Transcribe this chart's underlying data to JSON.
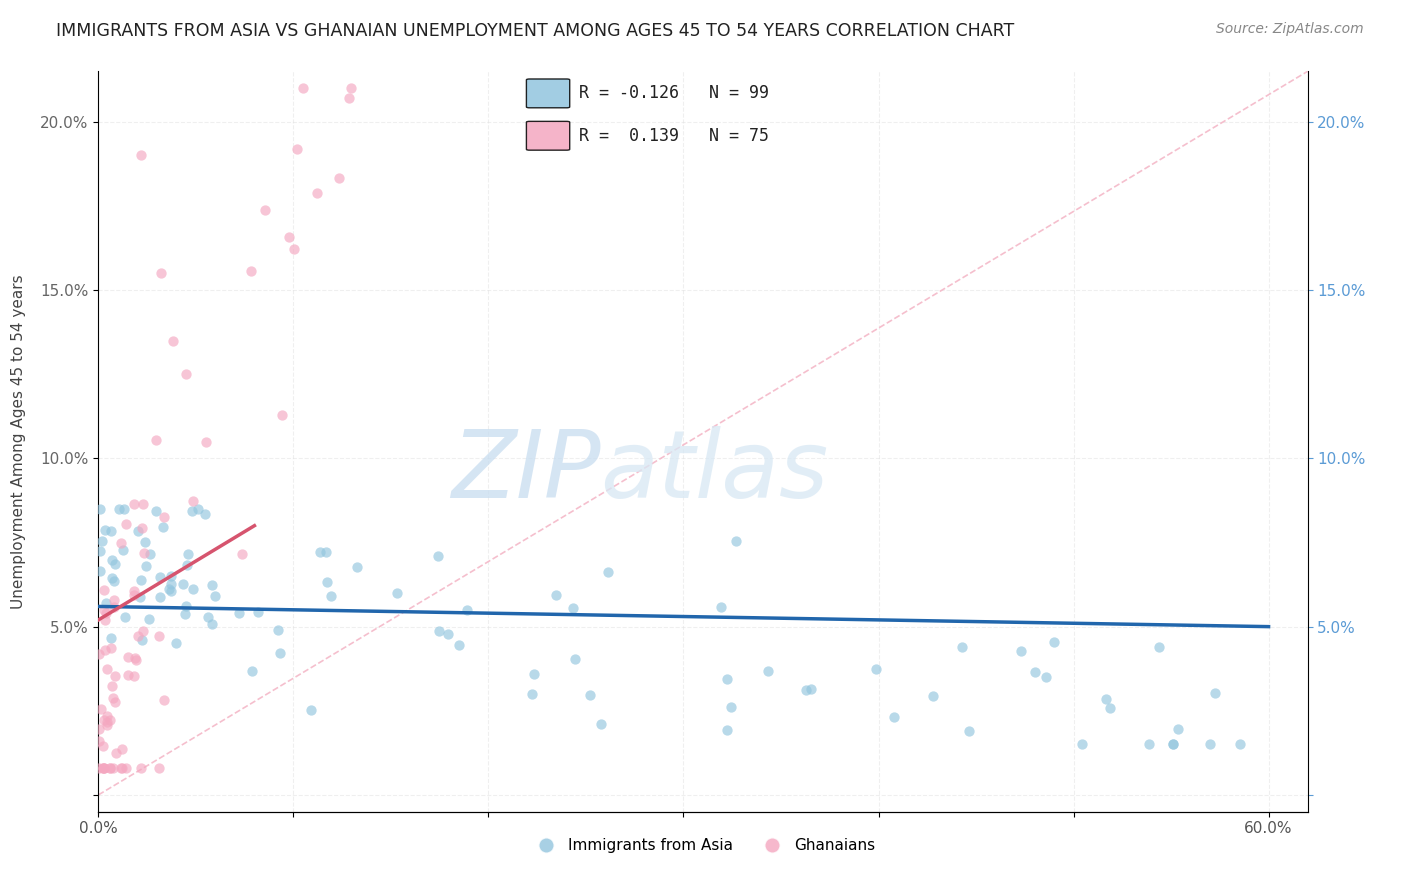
{
  "title": "IMMIGRANTS FROM ASIA VS GHANAIAN UNEMPLOYMENT AMONG AGES 45 TO 54 YEARS CORRELATION CHART",
  "source": "Source: ZipAtlas.com",
  "ylabel": "Unemployment Among Ages 45 to 54 years",
  "xlim": [
    0.0,
    0.62
  ],
  "ylim": [
    -0.005,
    0.215
  ],
  "xticks": [
    0.0,
    0.1,
    0.2,
    0.3,
    0.4,
    0.5,
    0.6
  ],
  "xticklabels": [
    "0.0%",
    "",
    "",
    "",
    "",
    "",
    "60.0%"
  ],
  "yticks": [
    0.0,
    0.05,
    0.1,
    0.15,
    0.2
  ],
  "yticklabels_left": [
    "",
    "5.0%",
    "10.0%",
    "15.0%",
    "20.0%"
  ],
  "yticklabels_right": [
    "",
    "5.0%",
    "10.0%",
    "15.0%",
    "20.0%"
  ],
  "legend_entries": [
    {
      "label": "Immigrants from Asia",
      "color": "#7fbfea",
      "R": "-0.126",
      "N": "99"
    },
    {
      "label": "Ghanaians",
      "color": "#f797b8",
      "R": "0.139",
      "N": "75"
    }
  ],
  "blue_scatter_color": "#92c5de",
  "pink_scatter_color": "#f4a7c0",
  "trendline_blue_color": "#2166ac",
  "trendline_pink_color": "#d6546e",
  "diag_line_color": "#f4b8c8",
  "watermark_zip_color": "#c5d8ed",
  "watermark_atlas_color": "#c5d8ed",
  "background": "#ffffff",
  "grid_color": "#e0e0e0",
  "title_color": "#222222",
  "source_color": "#888888",
  "ylabel_color": "#444444",
  "right_tick_color": "#5b9bd5",
  "left_tick_color": "#666666"
}
